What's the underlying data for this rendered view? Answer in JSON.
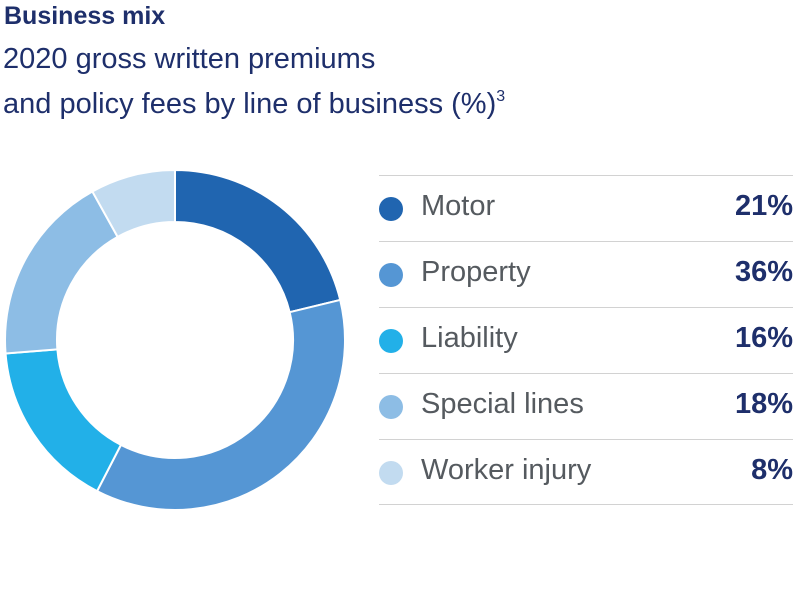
{
  "chart_data": {
    "type": "pie",
    "title": "Business mix",
    "subtitle_line1": "2020 gross written premiums",
    "subtitle_line2": "and policy fees by line of business (%)",
    "footnote_marker": "3",
    "slices": [
      {
        "label": "Motor",
        "value": 21,
        "display": "21%",
        "color": "#2065b0"
      },
      {
        "label": "Property",
        "value": 36,
        "display": "36%",
        "color": "#5596d4"
      },
      {
        "label": "Liability",
        "value": 16,
        "display": "16%",
        "color": "#22b0e8"
      },
      {
        "label": "Special lines",
        "value": 18,
        "display": "18%",
        "color": "#8dbde5"
      },
      {
        "label": "Worker injury",
        "value": 8,
        "display": "8%",
        "color": "#c2dbf0"
      }
    ]
  }
}
